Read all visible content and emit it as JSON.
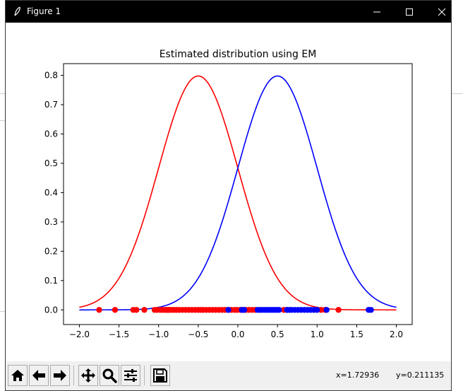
{
  "window": {
    "title": "Figure 1",
    "controls": {
      "minimize": "minimize-icon",
      "maximize": "maximize-icon",
      "close": "close-icon"
    }
  },
  "toolbar": {
    "buttons": [
      {
        "name": "home-button",
        "icon": "home-icon"
      },
      {
        "name": "back-button",
        "icon": "arrow-left-icon"
      },
      {
        "name": "forward-button",
        "icon": "arrow-right-icon"
      },
      {
        "name": "pan-button",
        "icon": "move-icon"
      },
      {
        "name": "zoom-button",
        "icon": "magnifier-icon"
      },
      {
        "name": "configure-subplots-button",
        "icon": "sliders-icon"
      },
      {
        "name": "save-button",
        "icon": "floppy-disk-icon"
      }
    ],
    "coord_x": "x=1.72936",
    "coord_y": "y=0.211135"
  },
  "chart_data": {
    "type": "line",
    "title": "Estimated distribution using EM",
    "xlabel": "",
    "ylabel": "",
    "xlim": [
      -2.2,
      2.2
    ],
    "ylim": [
      -0.05,
      0.84
    ],
    "xticks": [
      "−2.0",
      "−1.5",
      "−1.0",
      "−0.5",
      "0.0",
      "0.5",
      "1.0",
      "1.5",
      "2.0"
    ],
    "yticks": [
      "0.0",
      "0.1",
      "0.2",
      "0.3",
      "0.4",
      "0.5",
      "0.6",
      "0.7",
      "0.8"
    ],
    "xtick_values": [
      -2.0,
      -1.5,
      -1.0,
      -0.5,
      0.0,
      0.5,
      1.0,
      1.5,
      2.0
    ],
    "ytick_values": [
      0.0,
      0.1,
      0.2,
      0.3,
      0.4,
      0.5,
      0.6,
      0.7,
      0.8
    ],
    "grid": false,
    "series": [
      {
        "kind": "curve",
        "color": "#ff0000",
        "mean": -0.5,
        "std": 0.5,
        "x_range": [
          -2.0,
          2.0
        ]
      },
      {
        "kind": "curve",
        "color": "#0000ff",
        "mean": 0.5,
        "std": 0.5,
        "x_range": [
          -2.0,
          2.0
        ]
      },
      {
        "kind": "scatter",
        "color": "#ff0000",
        "x": [
          -1.75,
          -1.55,
          -1.32,
          -1.28,
          -1.18,
          -1.05,
          -1.02,
          -0.98,
          -0.95,
          -0.92,
          -0.9,
          -0.88,
          -0.86,
          -0.83,
          -0.8,
          -0.77,
          -0.74,
          -0.7,
          -0.66,
          -0.62,
          -0.58,
          -0.54,
          -0.5,
          -0.47,
          -0.44,
          -0.4,
          -0.36,
          -0.32,
          -0.28,
          -0.24,
          -0.2,
          -0.16,
          -0.12,
          -0.08,
          -0.04,
          -0.01,
          0.03,
          0.06,
          0.1,
          0.14,
          0.18,
          0.22,
          0.58,
          0.62,
          1.05,
          1.1,
          1.27
        ],
        "y": [
          0,
          0,
          0,
          0,
          0,
          0,
          0,
          0,
          0,
          0,
          0,
          0,
          0,
          0,
          0,
          0,
          0,
          0,
          0,
          0,
          0,
          0,
          0,
          0,
          0,
          0,
          0,
          0,
          0,
          0,
          0,
          0,
          0,
          0,
          0,
          0,
          0,
          0,
          0,
          0,
          0,
          0,
          0,
          0,
          0,
          0,
          0
        ]
      },
      {
        "kind": "scatter",
        "color": "#0000ff",
        "x": [
          -0.12,
          0.05,
          0.08,
          0.25,
          0.28,
          0.31,
          0.34,
          0.37,
          0.4,
          0.43,
          0.46,
          0.49,
          0.52,
          0.62,
          0.65,
          0.68,
          0.72,
          0.76,
          0.8,
          0.84,
          0.88,
          0.92,
          0.96,
          1.0,
          1.12,
          1.65,
          1.68
        ],
        "y": [
          0,
          0,
          0,
          0,
          0,
          0,
          0,
          0,
          0,
          0,
          0,
          0,
          0,
          0,
          0,
          0,
          0,
          0,
          0,
          0,
          0,
          0,
          0,
          0,
          0,
          0,
          0
        ]
      }
    ]
  }
}
